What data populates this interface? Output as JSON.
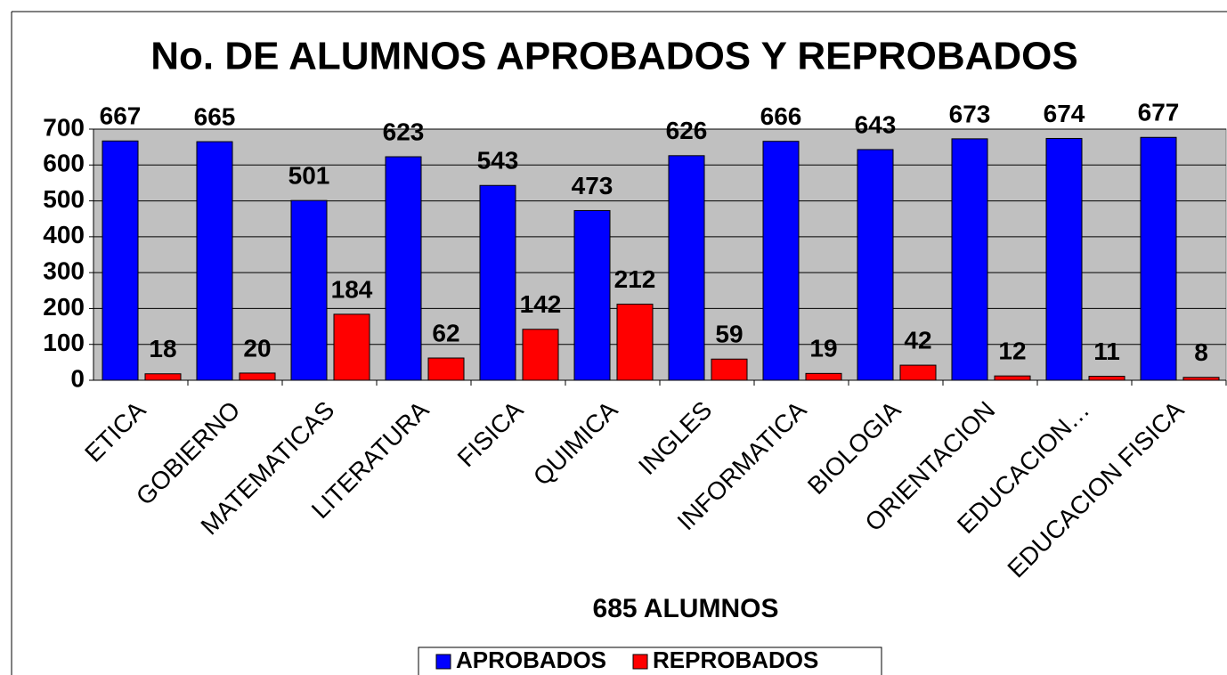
{
  "chart_data": {
    "type": "bar",
    "title": "No. DE ALUMNOS APROBADOS Y REPROBADOS",
    "x_label": "685 ALUMNOS",
    "categories": [
      "ETICA",
      "GOBIERNO",
      "MATEMATICAS",
      "LITERATURA",
      "FISICA",
      "QUIMICA",
      "INGLES",
      "INFORMATICA",
      "BIOLOGIA",
      "ORIENTACION",
      "EDUCACION…",
      "EDUCACION FISICA"
    ],
    "series": [
      {
        "name": "APROBADOS",
        "color": "#0000ff",
        "values": [
          667,
          665,
          501,
          623,
          543,
          473,
          626,
          666,
          643,
          673,
          674,
          677
        ]
      },
      {
        "name": "REPROBADOS",
        "color": "#ff0000",
        "values": [
          18,
          20,
          184,
          62,
          142,
          212,
          59,
          19,
          42,
          12,
          11,
          8
        ]
      }
    ],
    "ylim": [
      0,
      700
    ],
    "yticks": [
      0,
      100,
      200,
      300,
      400,
      500,
      600,
      700
    ],
    "grid": true,
    "legend": "bottom"
  }
}
